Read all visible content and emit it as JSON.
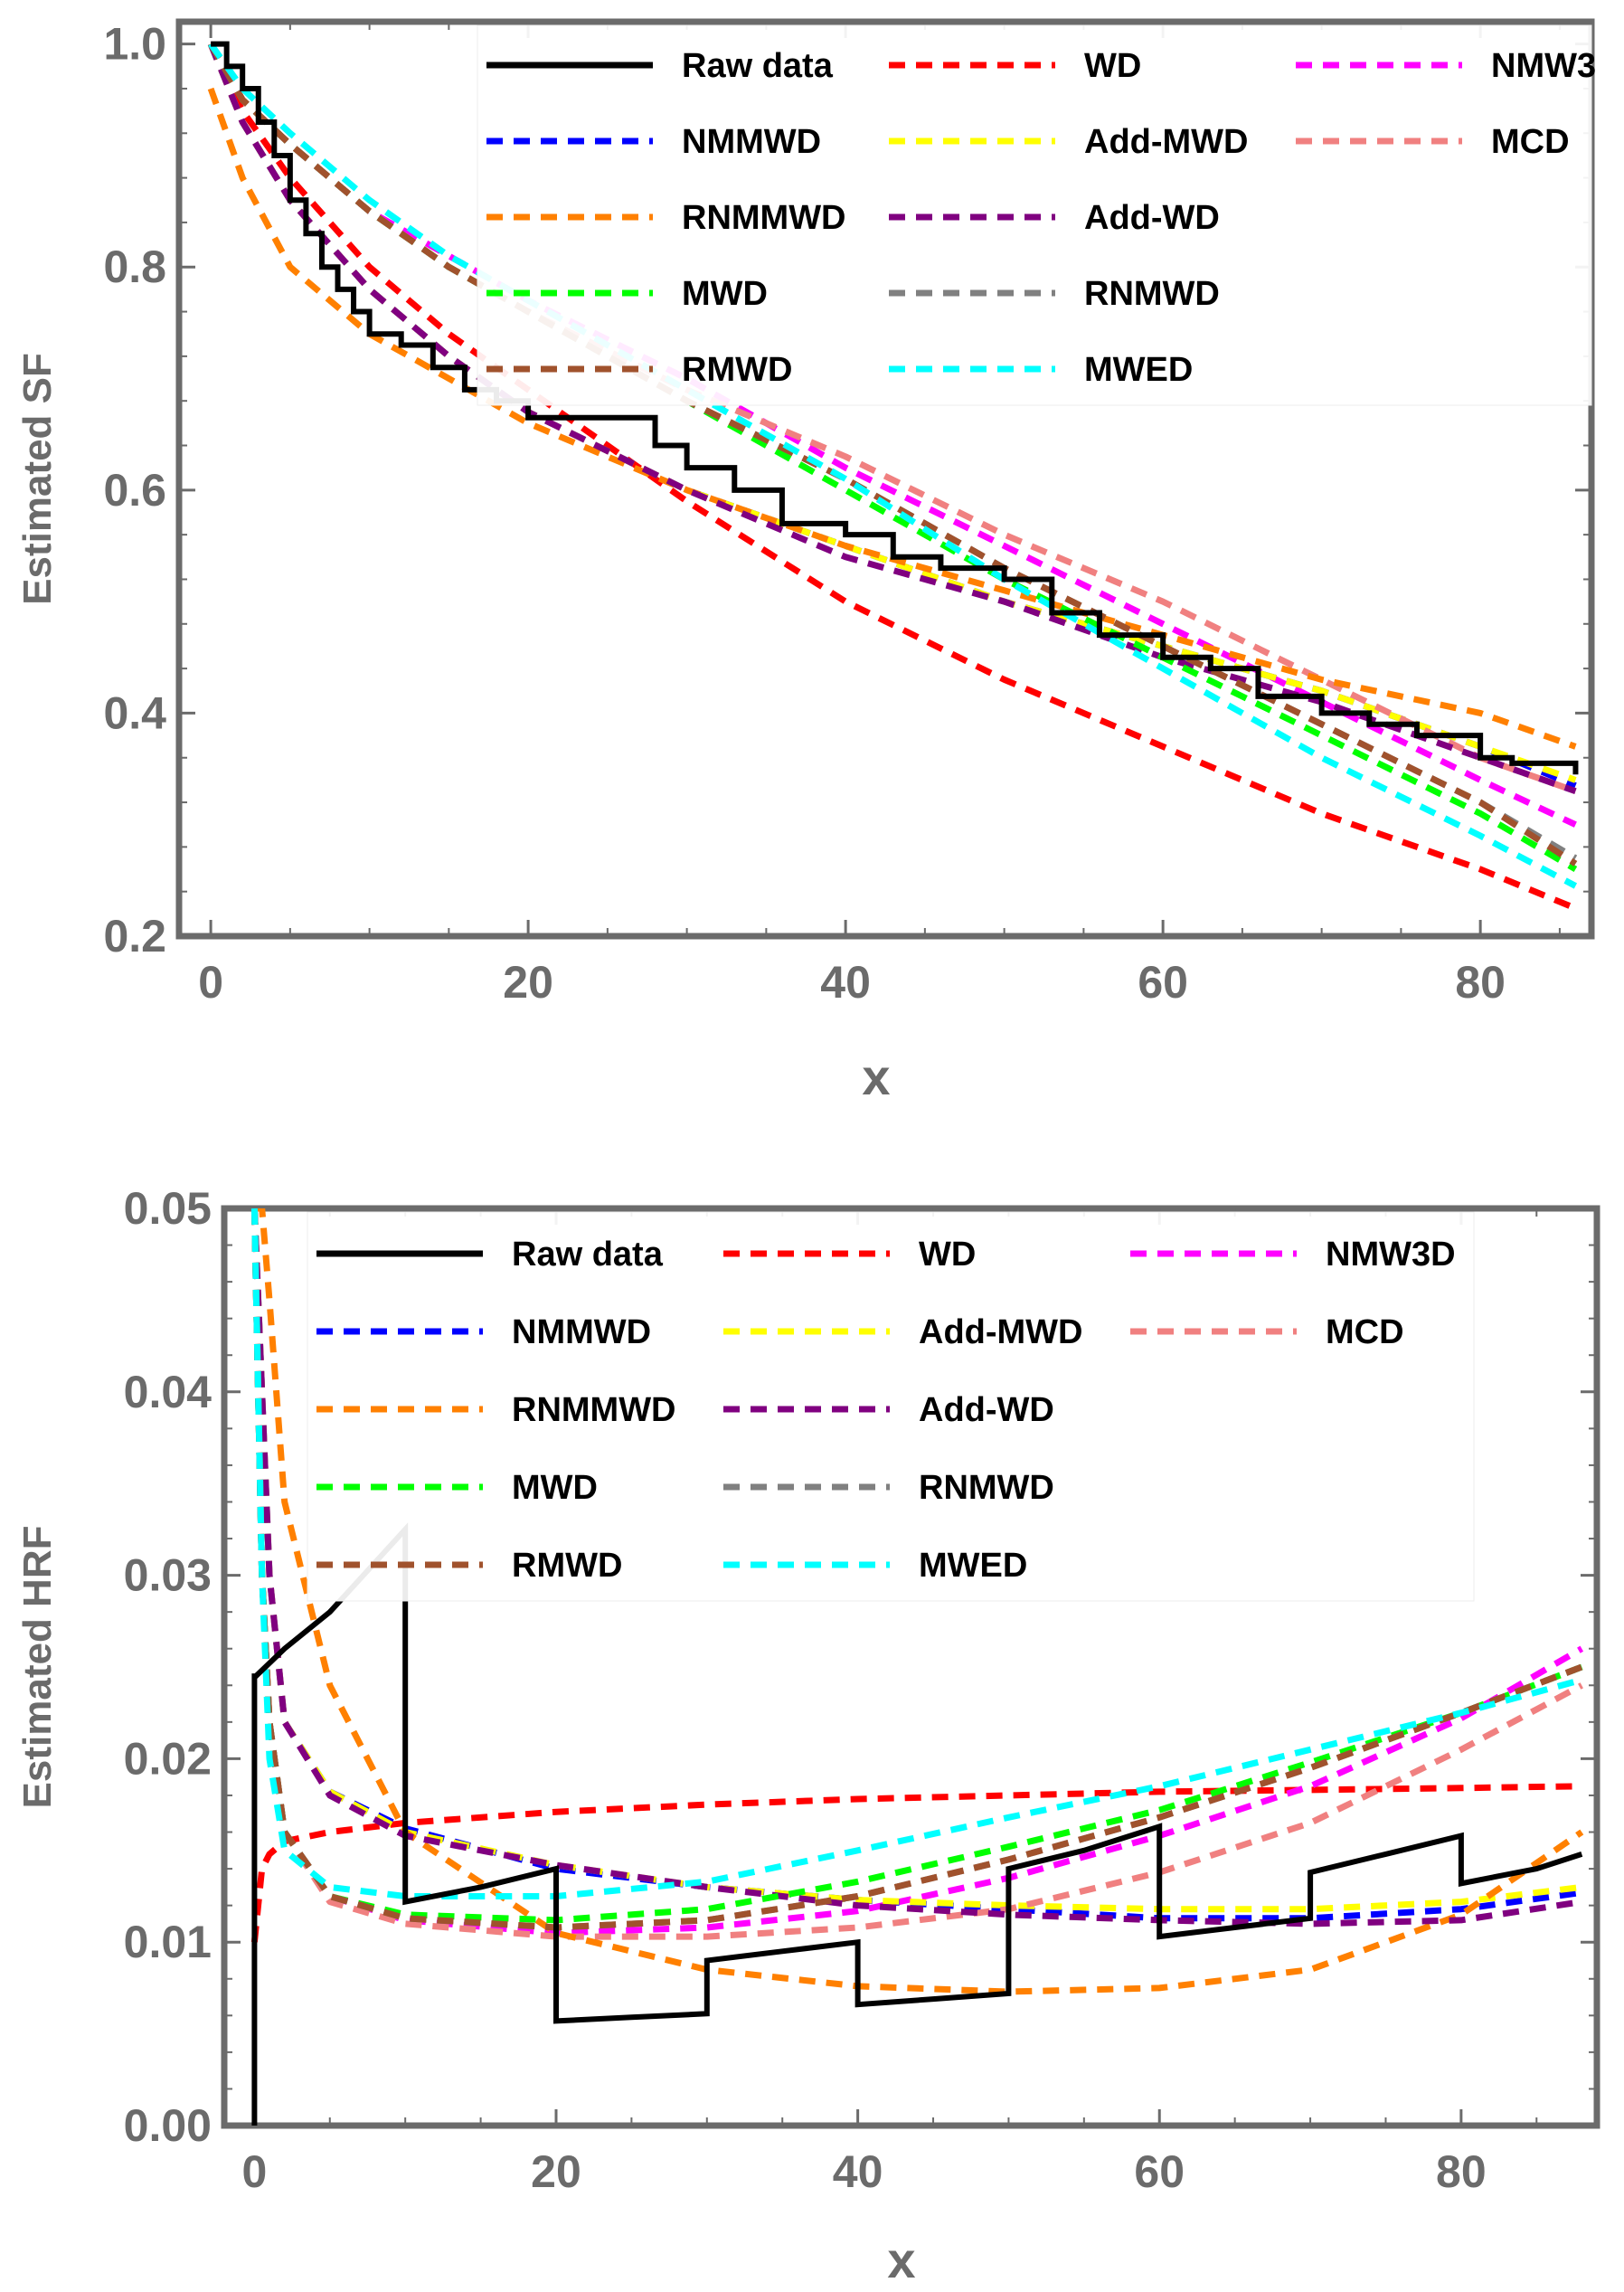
{
  "colors": {
    "Raw data": "#000000",
    "WD": "#ff0000",
    "NMW3D": "#ff00ff",
    "NMMWD": "#0000ff",
    "Add-MWD": "#ffff00",
    "MCD": "#f08080",
    "RNMMWD": "#ff8000",
    "Add-WD": "#800080",
    "MWD": "#00ff00",
    "RNMWD": "#808080",
    "RMWD": "#a0522d",
    "MWED": "#00ffff",
    "axis": "#6b6b6b"
  },
  "chart_data": [
    {
      "type": "line",
      "xlabel": "x",
      "ylabel": "Estimated SF",
      "xlim": [
        -2,
        87
      ],
      "ylim": [
        0.2,
        1.02
      ],
      "xticks": [
        "0",
        "20",
        "40",
        "60",
        "80"
      ],
      "yticks": [
        "0.2",
        "0.4",
        "0.6",
        "0.8",
        "1.0"
      ],
      "legend_position": "top-right",
      "legend_columns": [
        [
          "Raw data",
          "NMMWD",
          "RNMMWD",
          "MWD",
          "RMWD"
        ],
        [
          "WD",
          "Add-MWD",
          "Add-WD",
          "RNMWD",
          "MWED"
        ],
        [
          "NMW3",
          "MCD"
        ]
      ],
      "raw": {
        "name": "Raw data",
        "style": "step",
        "x": [
          0,
          1,
          2,
          3,
          4,
          5,
          6,
          7,
          8,
          9,
          10,
          12,
          14,
          16,
          18,
          20,
          25,
          28,
          30,
          33,
          36,
          40,
          43,
          46,
          50,
          53,
          56,
          60,
          63,
          66,
          70,
          73,
          76,
          80,
          82,
          86
        ],
        "y": [
          1.0,
          0.98,
          0.96,
          0.93,
          0.9,
          0.86,
          0.83,
          0.8,
          0.78,
          0.76,
          0.74,
          0.73,
          0.71,
          0.69,
          0.68,
          0.665,
          0.665,
          0.64,
          0.62,
          0.6,
          0.57,
          0.56,
          0.54,
          0.53,
          0.52,
          0.49,
          0.47,
          0.45,
          0.44,
          0.415,
          0.4,
          0.39,
          0.38,
          0.36,
          0.355,
          0.345
        ]
      },
      "x": [
        0,
        2,
        5,
        10,
        15,
        20,
        30,
        40,
        50,
        60,
        70,
        80,
        86
      ],
      "series": [
        {
          "name": "WD",
          "values": [
            1.0,
            0.94,
            0.88,
            0.8,
            0.74,
            0.69,
            0.59,
            0.5,
            0.43,
            0.37,
            0.31,
            0.26,
            0.225
          ]
        },
        {
          "name": "NMW3",
          "values": [
            1.0,
            0.95,
            0.91,
            0.85,
            0.81,
            0.77,
            0.7,
            0.62,
            0.55,
            0.48,
            0.41,
            0.34,
            0.3
          ]
        },
        {
          "name": "NMMWD",
          "values": [
            1.0,
            0.93,
            0.86,
            0.78,
            0.72,
            0.67,
            0.6,
            0.55,
            0.5,
            0.46,
            0.42,
            0.37,
            0.335
          ]
        },
        {
          "name": "Add-MWD",
          "values": [
            1.0,
            0.93,
            0.86,
            0.78,
            0.72,
            0.67,
            0.6,
            0.55,
            0.5,
            0.46,
            0.42,
            0.37,
            0.34
          ]
        },
        {
          "name": "MCD",
          "values": [
            1.0,
            0.95,
            0.91,
            0.85,
            0.8,
            0.76,
            0.69,
            0.63,
            0.56,
            0.5,
            0.43,
            0.36,
            0.33
          ]
        },
        {
          "name": "RNMMWD",
          "values": [
            0.96,
            0.88,
            0.8,
            0.74,
            0.7,
            0.66,
            0.6,
            0.55,
            0.51,
            0.47,
            0.43,
            0.4,
            0.37
          ]
        },
        {
          "name": "Add-WD",
          "values": [
            1.0,
            0.93,
            0.86,
            0.78,
            0.72,
            0.67,
            0.6,
            0.54,
            0.5,
            0.45,
            0.41,
            0.36,
            0.33
          ]
        },
        {
          "name": "MWD",
          "values": [
            1.0,
            0.95,
            0.91,
            0.85,
            0.8,
            0.76,
            0.68,
            0.6,
            0.52,
            0.45,
            0.38,
            0.31,
            0.26
          ]
        },
        {
          "name": "RNMWD",
          "values": [
            1.0,
            0.95,
            0.91,
            0.85,
            0.8,
            0.76,
            0.68,
            0.61,
            0.53,
            0.46,
            0.39,
            0.32,
            0.27
          ]
        },
        {
          "name": "RMWD",
          "values": [
            1.0,
            0.95,
            0.91,
            0.85,
            0.8,
            0.76,
            0.68,
            0.61,
            0.53,
            0.46,
            0.39,
            0.32,
            0.265
          ]
        },
        {
          "name": "MWED",
          "values": [
            1.0,
            0.96,
            0.92,
            0.86,
            0.81,
            0.77,
            0.69,
            0.61,
            0.52,
            0.44,
            0.36,
            0.29,
            0.245
          ]
        }
      ]
    },
    {
      "type": "line",
      "xlabel": "x",
      "ylabel": "Estimated HRF",
      "xlim": [
        -2,
        89
      ],
      "ylim": [
        0.0,
        0.05
      ],
      "xticks": [
        "0",
        "20",
        "40",
        "60",
        "80"
      ],
      "yticks": [
        "0.00",
        "0.01",
        "0.02",
        "0.03",
        "0.04",
        "0.05"
      ],
      "legend_position": "top",
      "legend_columns": [
        [
          "Raw data",
          "NMMWD",
          "RNMMWD",
          "MWD",
          "RMWD"
        ],
        [
          "WD",
          "Add-MWD",
          "Add-WD",
          "RNMWD",
          "MWED"
        ],
        [
          "NMW3D",
          "MCD"
        ]
      ],
      "raw": {
        "name": "Raw data",
        "style": "polyline",
        "x": [
          0,
          0,
          0.1,
          2,
          5,
          10,
          10,
          15,
          20,
          20,
          25,
          30,
          30,
          35,
          40,
          40,
          45,
          50,
          50,
          55,
          60,
          60,
          65,
          70,
          70,
          75,
          80,
          80,
          85,
          88
        ],
        "y": [
          0.0,
          0.0245,
          0.0245,
          0.026,
          0.028,
          0.0325,
          0.0122,
          0.013,
          0.014,
          0.0057,
          0.0059,
          0.0061,
          0.009,
          0.0095,
          0.01,
          0.0066,
          0.0069,
          0.0072,
          0.014,
          0.015,
          0.0163,
          0.0103,
          0.0108,
          0.0113,
          0.0138,
          0.0148,
          0.0158,
          0.0132,
          0.014,
          0.0148
        ]
      },
      "x": [
        0,
        0.5,
        1,
        2,
        5,
        10,
        20,
        30,
        40,
        50,
        60,
        70,
        80,
        88
      ],
      "series": [
        {
          "name": "WD",
          "values": [
            0.01,
            0.014,
            0.0148,
            0.0155,
            0.016,
            0.0165,
            0.0171,
            0.0175,
            0.0178,
            0.018,
            0.0182,
            0.0183,
            0.0184,
            0.0185
          ]
        },
        {
          "name": "NMW3D",
          "values": [
            0.05,
            0.03,
            0.022,
            0.016,
            0.0125,
            0.0112,
            0.0105,
            0.0108,
            0.0117,
            0.0135,
            0.0158,
            0.0185,
            0.0222,
            0.026
          ]
        },
        {
          "name": "NMMWD",
          "values": [
            0.05,
            0.04,
            0.03,
            0.022,
            0.0182,
            0.0162,
            0.014,
            0.013,
            0.0123,
            0.0118,
            0.0113,
            0.0113,
            0.0118,
            0.0127
          ]
        },
        {
          "name": "Add-MWD",
          "values": [
            0.05,
            0.04,
            0.03,
            0.022,
            0.0182,
            0.016,
            0.0142,
            0.013,
            0.0123,
            0.012,
            0.0118,
            0.0118,
            0.0122,
            0.013
          ]
        },
        {
          "name": "MCD",
          "values": [
            0.05,
            0.03,
            0.022,
            0.016,
            0.0122,
            0.011,
            0.0103,
            0.0103,
            0.0108,
            0.0118,
            0.0138,
            0.0165,
            0.0205,
            0.024
          ]
        },
        {
          "name": "RNMMWD",
          "values": [
            0.05,
            0.05,
            0.045,
            0.034,
            0.024,
            0.016,
            0.0105,
            0.0085,
            0.0076,
            0.0073,
            0.0075,
            0.0085,
            0.0115,
            0.016
          ]
        },
        {
          "name": "Add-WD",
          "values": [
            0.05,
            0.04,
            0.03,
            0.022,
            0.018,
            0.0158,
            0.0142,
            0.013,
            0.012,
            0.0115,
            0.0112,
            0.011,
            0.0112,
            0.0122
          ]
        },
        {
          "name": "MWD",
          "values": [
            0.05,
            0.03,
            0.022,
            0.016,
            0.0125,
            0.0115,
            0.0112,
            0.0118,
            0.0133,
            0.0152,
            0.0172,
            0.0198,
            0.0225,
            0.025
          ]
        },
        {
          "name": "RNMWD",
          "values": [
            0.05,
            0.03,
            0.022,
            0.016,
            0.0125,
            0.0113,
            0.0108,
            0.0112,
            0.0125,
            0.0145,
            0.0168,
            0.0195,
            0.0225,
            0.025
          ]
        },
        {
          "name": "RMWD",
          "values": [
            0.05,
            0.03,
            0.022,
            0.016,
            0.0125,
            0.0113,
            0.0108,
            0.0112,
            0.0125,
            0.0145,
            0.0168,
            0.0195,
            0.0225,
            0.025
          ]
        },
        {
          "name": "MWED",
          "values": [
            0.05,
            0.03,
            0.02,
            0.015,
            0.013,
            0.0125,
            0.0125,
            0.0133,
            0.015,
            0.0168,
            0.0185,
            0.0205,
            0.0225,
            0.0243
          ]
        }
      ]
    }
  ]
}
